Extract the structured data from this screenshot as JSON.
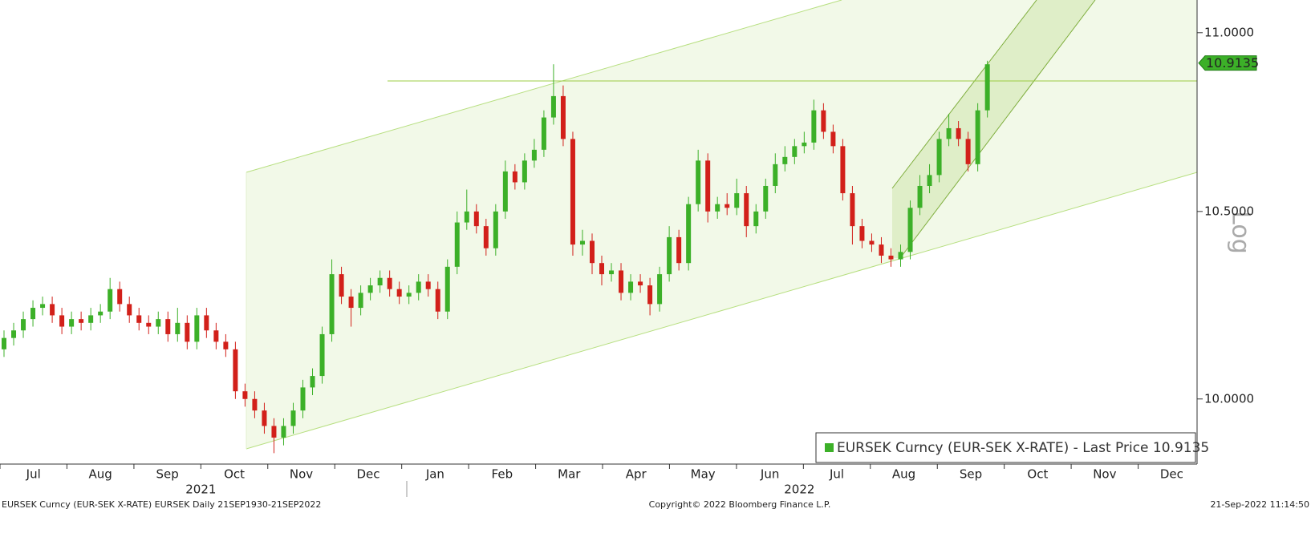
{
  "chart_data": {
    "type": "candlestick",
    "log_scale": true,
    "series": [
      {
        "name": "EURSEK Curncy (EUR-SEK X-RATE) - Last Price 10.9135",
        "color": "#3cb028",
        "up_color": "#3cb028",
        "down_color": "#d2201a",
        "x": [
          2021.505,
          2021.517,
          2021.529,
          2021.541,
          2021.553,
          2021.565,
          2021.577,
          2021.589,
          2021.601,
          2021.613,
          2021.625,
          2021.637,
          2021.649,
          2021.661,
          2021.673,
          2021.685,
          2021.697,
          2021.709,
          2021.721,
          2021.733,
          2021.745,
          2021.757,
          2021.769,
          2021.781,
          2021.793,
          2021.805,
          2021.817,
          2021.829,
          2021.841,
          2021.853,
          2021.865,
          2021.877,
          2021.889,
          2021.901,
          2021.913,
          2021.925,
          2021.937,
          2021.949,
          2021.961,
          2021.973,
          2021.985,
          2021.997,
          2022.009,
          2022.021,
          2022.033,
          2022.045,
          2022.057,
          2022.069,
          2022.081,
          2022.093,
          2022.105,
          2022.117,
          2022.129,
          2022.141,
          2022.153,
          2022.165,
          2022.177,
          2022.189,
          2022.201,
          2022.213,
          2022.225,
          2022.237,
          2022.249,
          2022.261,
          2022.273,
          2022.285,
          2022.297,
          2022.309,
          2022.321,
          2022.333,
          2022.345,
          2022.357,
          2022.369,
          2022.381,
          2022.393,
          2022.405,
          2022.417,
          2022.429,
          2022.441,
          2022.453,
          2022.465,
          2022.477,
          2022.489,
          2022.501,
          2022.513,
          2022.525,
          2022.537,
          2022.549,
          2022.561,
          2022.573,
          2022.585,
          2022.597,
          2022.609,
          2022.621,
          2022.633,
          2022.645,
          2022.657,
          2022.669,
          2022.681,
          2022.693,
          2022.705,
          2022.717,
          2022.729
        ],
        "open": [
          10.13,
          10.16,
          10.18,
          10.21,
          10.24,
          10.25,
          10.22,
          10.19,
          10.21,
          10.2,
          10.22,
          10.23,
          10.29,
          10.25,
          10.22,
          10.2,
          10.19,
          10.21,
          10.17,
          10.2,
          10.15,
          10.22,
          10.18,
          10.15,
          10.13,
          10.02,
          10.0,
          9.97,
          9.93,
          9.9,
          9.93,
          9.97,
          10.03,
          10.06,
          10.17,
          10.33,
          10.27,
          10.24,
          10.28,
          10.3,
          10.32,
          10.29,
          10.27,
          10.28,
          10.31,
          10.29,
          10.23,
          10.35,
          10.47,
          10.5,
          10.46,
          10.4,
          10.5,
          10.61,
          10.58,
          10.64,
          10.67,
          10.76,
          10.82,
          10.7,
          10.41,
          10.42,
          10.36,
          10.33,
          10.34,
          10.28,
          10.31,
          10.3,
          10.25,
          10.33,
          10.43,
          10.36,
          10.52,
          10.64,
          10.5,
          10.52,
          10.51,
          10.55,
          10.46,
          10.5,
          10.57,
          10.63,
          10.65,
          10.68,
          10.69,
          10.78,
          10.72,
          10.68,
          10.55,
          10.46,
          10.42,
          10.41,
          10.38,
          10.37,
          10.39,
          10.51,
          10.57,
          10.6,
          10.7,
          10.73,
          10.7,
          10.63,
          10.78
        ],
        "high": [
          10.18,
          10.2,
          10.23,
          10.26,
          10.27,
          10.27,
          10.24,
          10.23,
          10.23,
          10.24,
          10.25,
          10.32,
          10.31,
          10.27,
          10.24,
          10.22,
          10.23,
          10.23,
          10.24,
          10.22,
          10.24,
          10.24,
          10.2,
          10.17,
          10.15,
          10.04,
          10.02,
          9.99,
          9.95,
          9.95,
          9.99,
          10.05,
          10.08,
          10.19,
          10.37,
          10.35,
          10.29,
          10.3,
          10.32,
          10.34,
          10.34,
          10.31,
          10.3,
          10.33,
          10.33,
          10.31,
          10.37,
          10.5,
          10.56,
          10.52,
          10.48,
          10.52,
          10.64,
          10.63,
          10.66,
          10.7,
          10.78,
          10.91,
          10.85,
          10.72,
          10.45,
          10.44,
          10.38,
          10.36,
          10.36,
          10.33,
          10.33,
          10.32,
          10.35,
          10.46,
          10.45,
          10.54,
          10.67,
          10.66,
          10.54,
          10.55,
          10.59,
          10.57,
          10.52,
          10.59,
          10.66,
          10.68,
          10.7,
          10.72,
          10.81,
          10.8,
          10.74,
          10.7,
          10.57,
          10.48,
          10.44,
          10.43,
          10.4,
          10.41,
          10.53,
          10.6,
          10.63,
          10.72,
          10.77,
          10.75,
          10.72,
          10.8,
          10.92
        ],
        "low": [
          10.11,
          10.14,
          10.16,
          10.19,
          10.22,
          10.2,
          10.17,
          10.17,
          10.18,
          10.18,
          10.2,
          10.21,
          10.23,
          10.2,
          10.18,
          10.17,
          10.17,
          10.15,
          10.15,
          10.13,
          10.13,
          10.16,
          10.13,
          10.11,
          10.0,
          9.98,
          9.95,
          9.91,
          9.86,
          9.88,
          9.91,
          9.95,
          10.01,
          10.04,
          10.15,
          10.25,
          10.19,
          10.22,
          10.26,
          10.28,
          10.27,
          10.25,
          10.25,
          10.26,
          10.27,
          10.21,
          10.21,
          10.33,
          10.45,
          10.44,
          10.38,
          10.38,
          10.48,
          10.56,
          10.56,
          10.62,
          10.65,
          10.74,
          10.68,
          10.38,
          10.38,
          10.33,
          10.3,
          10.31,
          10.26,
          10.26,
          10.28,
          10.22,
          10.23,
          10.31,
          10.34,
          10.34,
          10.5,
          10.47,
          10.48,
          10.49,
          10.49,
          10.43,
          10.44,
          10.48,
          10.55,
          10.61,
          10.63,
          10.66,
          10.67,
          10.7,
          10.66,
          10.53,
          10.41,
          10.4,
          10.39,
          10.36,
          10.35,
          10.35,
          10.37,
          10.49,
          10.55,
          10.58,
          10.68,
          10.68,
          10.61,
          10.61,
          10.76
        ],
        "close": [
          10.16,
          10.18,
          10.21,
          10.24,
          10.25,
          10.22,
          10.19,
          10.21,
          10.2,
          10.22,
          10.23,
          10.29,
          10.25,
          10.22,
          10.2,
          10.19,
          10.21,
          10.17,
          10.2,
          10.15,
          10.22,
          10.18,
          10.15,
          10.13,
          10.02,
          10.0,
          9.97,
          9.93,
          9.9,
          9.93,
          9.97,
          10.03,
          10.06,
          10.17,
          10.33,
          10.27,
          10.24,
          10.28,
          10.3,
          10.32,
          10.29,
          10.27,
          10.28,
          10.31,
          10.29,
          10.23,
          10.35,
          10.47,
          10.5,
          10.46,
          10.4,
          10.5,
          10.61,
          10.58,
          10.64,
          10.67,
          10.76,
          10.82,
          10.7,
          10.41,
          10.42,
          10.36,
          10.33,
          10.34,
          10.28,
          10.31,
          10.3,
          10.25,
          10.33,
          10.43,
          10.36,
          10.52,
          10.64,
          10.5,
          10.52,
          10.51,
          10.55,
          10.46,
          10.5,
          10.57,
          10.63,
          10.65,
          10.68,
          10.69,
          10.78,
          10.72,
          10.68,
          10.55,
          10.46,
          10.42,
          10.41,
          10.38,
          10.37,
          10.39,
          10.51,
          10.57,
          10.6,
          10.7,
          10.73,
          10.7,
          10.63,
          10.78,
          10.91
        ]
      }
    ],
    "last_price": 10.9135,
    "xlim": [
      2021.5,
      2022.99
    ],
    "xticks": [
      {
        "value": 2021.5,
        "label": "Jul"
      },
      {
        "value": 2021.5833,
        "label": "Aug"
      },
      {
        "value": 2021.6667,
        "label": "Sep"
      },
      {
        "value": 2021.75,
        "label": "Oct"
      },
      {
        "value": 2021.8333,
        "label": "Nov"
      },
      {
        "value": 2021.9167,
        "label": "Dec"
      },
      {
        "value": 2022.0,
        "label": "Jan"
      },
      {
        "value": 2022.0833,
        "label": "Feb"
      },
      {
        "value": 2022.1667,
        "label": "Mar"
      },
      {
        "value": 2022.25,
        "label": "Apr"
      },
      {
        "value": 2022.3333,
        "label": "May"
      },
      {
        "value": 2022.4167,
        "label": "Jun"
      },
      {
        "value": 2022.5,
        "label": "Jul"
      },
      {
        "value": 2022.5833,
        "label": "Aug"
      },
      {
        "value": 2022.6667,
        "label": "Sep"
      },
      {
        "value": 2022.75,
        "label": "Oct"
      },
      {
        "value": 2022.8333,
        "label": "Nov"
      },
      {
        "value": 2022.9167,
        "label": "Dec"
      }
    ],
    "years": [
      "2021",
      "2022"
    ],
    "ylim": [
      9.832,
      11.094
    ],
    "yticks": [
      {
        "value": 10,
        "label": "10.0000"
      },
      {
        "value": 10.5,
        "label": "10.5000"
      },
      {
        "value": 11,
        "label": "11.0000"
      }
    ],
    "scale_label": "Log",
    "footer": {
      "left": "EURSEK Curncy (EUR-SEK X-RATE) EURSEK  Daily 21SEP1930-21SEP2022",
      "center": "Copyright© 2022 Bloomberg Finance L.P.",
      "right": "21-Sep-2022 11:14:50"
    }
  }
}
